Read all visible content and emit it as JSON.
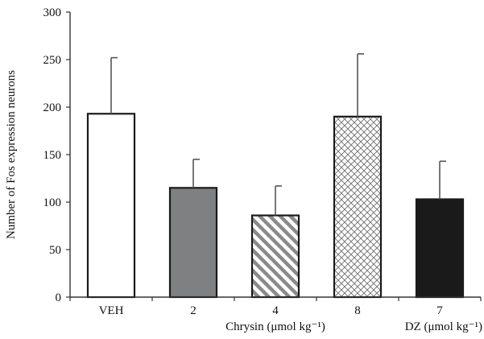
{
  "chart_data": {
    "type": "bar",
    "title": "",
    "xlabel": "",
    "ylabel": "Number of Fos expression neurons",
    "ylim": [
      0,
      300
    ],
    "yticks": [
      0,
      50,
      100,
      150,
      200,
      250,
      300
    ],
    "categories": [
      "VEH",
      "2",
      "4",
      "8",
      "7"
    ],
    "values": [
      193,
      115,
      86,
      190,
      103
    ],
    "errors": [
      59,
      30,
      31,
      66,
      40
    ],
    "bar_styles": [
      "white",
      "gray",
      "diagonal-stripes",
      "crosshatch",
      "black"
    ],
    "group_labels": [
      {
        "text": "Chrysin (μmol kg⁻¹)",
        "categories": [
          "2",
          "4",
          "8"
        ]
      },
      {
        "text": "DZ (μmol kg⁻¹)",
        "categories": [
          "7"
        ]
      }
    ],
    "grid": false,
    "legend": "none",
    "colors": {
      "gray": "#7f8082",
      "black": "#1a1a1a",
      "stripe": "#8a8a8a",
      "axis": "#333333",
      "error": "#555555"
    }
  }
}
